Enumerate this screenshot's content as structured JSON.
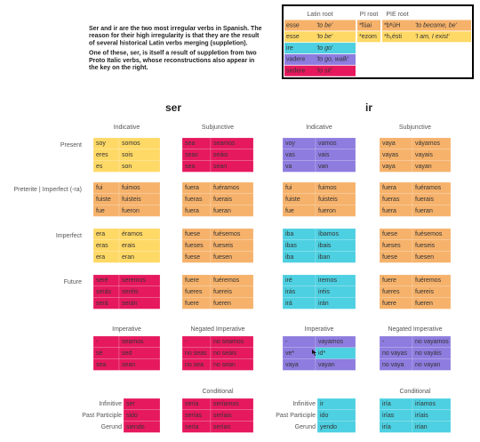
{
  "intro": [
    "Ser and ir are the two most irregular verbs in Spanish. The reason for their high irregularity is that they are the result of several historical Latin verbs merging (suppletion).",
    "One of these, ser, is itself a result of suppletion from two Proto Italic verbs, whose reconstructions also appear in the key on the right."
  ],
  "key": {
    "headers": [
      "Latin root",
      "PI root",
      "PIE root"
    ],
    "rows": [
      {
        "latin": "esse",
        "meaning": "'to be'",
        "pi": "*fúai",
        "pie": "*bʰúH",
        "pie_meaning": "'to become, be'",
        "color": "#f6b26b"
      },
      {
        "latin": "esse",
        "meaning": "'to be'",
        "pi": "*ezom",
        "pie": "*h₁ésti",
        "pie_meaning": "'I am, I exist'",
        "color": "#ffd966"
      },
      {
        "latin": "ire",
        "meaning": "'to go'",
        "color": "#4dd0e1"
      },
      {
        "latin": "vadere",
        "meaning": "'to go, walk'",
        "color": "#8e7cdf"
      },
      {
        "latin": "sedere",
        "meaning": "'to sit'",
        "color": "#e6195e"
      }
    ]
  },
  "row_labels": [
    "Present",
    "Preterite | Imperfect (-ra)",
    "Imperfect",
    "Future"
  ],
  "nonfinite_labels": [
    "Infinitive",
    "Past Participle",
    "Gerund"
  ],
  "verbs": [
    {
      "title": "ser",
      "mood_headers": [
        "Indicative",
        "Subjunctive"
      ],
      "tenses": [
        [
          {
            "color": "#ffd966",
            "cells": [
              [
                "soy",
                "somos"
              ],
              [
                "eres",
                "sois"
              ],
              [
                "es",
                "son"
              ]
            ]
          },
          {
            "color": "#e6195e",
            "cells": [
              [
                "sea",
                "seamos"
              ],
              [
                "seas",
                "seáis"
              ],
              [
                "sea",
                "sean"
              ]
            ]
          }
        ],
        [
          {
            "color": "#f6b26b",
            "cells": [
              [
                "fui",
                "fuimos"
              ],
              [
                "fuiste",
                "fuisteis"
              ],
              [
                "fue",
                "fueron"
              ]
            ]
          },
          {
            "color": "#f6b26b",
            "cells": [
              [
                "fuera",
                "fuéramos"
              ],
              [
                "fueras",
                "fuerais"
              ],
              [
                "fuera",
                "fueran"
              ]
            ]
          }
        ],
        [
          {
            "color": "#ffd966",
            "cells": [
              [
                "era",
                "éramos"
              ],
              [
                "eras",
                "erais"
              ],
              [
                "era",
                "eran"
              ]
            ]
          },
          {
            "color": "#f6b26b",
            "cells": [
              [
                "fuese",
                "fuésemos"
              ],
              [
                "fueses",
                "fueseis"
              ],
              [
                "fuese",
                "fuesen"
              ]
            ]
          }
        ],
        [
          {
            "color": "#e6195e",
            "cells": [
              [
                "seré",
                "seremos"
              ],
              [
                "serás",
                "seréis"
              ],
              [
                "será",
                "serán"
              ]
            ]
          },
          {
            "color": "#f6b26b",
            "cells": [
              [
                "fuere",
                "fuéremos"
              ],
              [
                "fueres",
                "fuereis"
              ],
              [
                "fuere",
                "fueren"
              ]
            ]
          }
        ]
      ],
      "imperative_headers": [
        "Imperative",
        "Negated Imperative"
      ],
      "imperative": [
        {
          "color": "#e6195e",
          "cells": [
            [
              "-",
              "seamos"
            ],
            [
              "sé",
              "sed"
            ],
            [
              "sea",
              "sean"
            ]
          ]
        },
        {
          "color": "#e6195e",
          "cells": [
            [
              "-",
              "no seamos"
            ],
            [
              "no seas",
              "no seáis"
            ],
            [
              "no sea",
              "no sean"
            ]
          ]
        }
      ],
      "nonfinite": {
        "color": "#e6195e",
        "cells": [
          "ser",
          "sido",
          "siendo"
        ]
      },
      "conditional_header": "Conditional",
      "conditional": {
        "color": "#e6195e",
        "cells": [
          [
            "sería",
            "seríamos"
          ],
          [
            "serías",
            "seríais"
          ],
          [
            "sería",
            "serían"
          ]
        ]
      }
    },
    {
      "title": "ir",
      "mood_headers": [
        "Indicative",
        "Subjunctive"
      ],
      "tenses": [
        [
          {
            "color": "#8e7cdf",
            "cells": [
              [
                "voy",
                "vamos"
              ],
              [
                "vas",
                "vais"
              ],
              [
                "va",
                "van"
              ]
            ]
          },
          {
            "color": "#f6b26b",
            "cells": [
              [
                "vaya",
                "váyamos"
              ],
              [
                "vayas",
                "vayais"
              ],
              [
                "vaya",
                "vayan"
              ]
            ]
          }
        ],
        [
          {
            "color": "#f6b26b",
            "cells": [
              [
                "fui",
                "fuimos"
              ],
              [
                "fuiste",
                "fuisteis"
              ],
              [
                "fue",
                "fueron"
              ]
            ]
          },
          {
            "color": "#f6b26b",
            "cells": [
              [
                "fuera",
                "fuéramos"
              ],
              [
                "fueras",
                "fuerais"
              ],
              [
                "fuera",
                "fueran"
              ]
            ]
          }
        ],
        [
          {
            "color": "#4dd0e1",
            "cells": [
              [
                "iba",
                "íbamos"
              ],
              [
                "ibas",
                "ibais"
              ],
              [
                "iba",
                "iban"
              ]
            ]
          },
          {
            "color": "#f6b26b",
            "cells": [
              [
                "fuese",
                "fuésemos"
              ],
              [
                "fueses",
                "fueseis"
              ],
              [
                "fuese",
                "fuesen"
              ]
            ]
          }
        ],
        [
          {
            "color": "#4dd0e1",
            "cells": [
              [
                "iré",
                "iremos"
              ],
              [
                "irás",
                "iréis"
              ],
              [
                "irá",
                "irán"
              ]
            ]
          },
          {
            "color": "#f6b26b",
            "cells": [
              [
                "fuere",
                "fuéremos"
              ],
              [
                "fueres",
                "fuereis"
              ],
              [
                "fuere",
                "fueren"
              ]
            ]
          }
        ]
      ],
      "imperative_headers": [
        "Imperative",
        "Negated Imperative"
      ],
      "imperative": [
        {
          "colors": [
            [
              "#8e7cdf",
              "#8e7cdf"
            ],
            [
              "#8e7cdf",
              "#4dd0e1"
            ],
            [
              "#8e7cdf",
              "#8e7cdf"
            ]
          ],
          "cells": [
            [
              "-",
              "vayamos"
            ],
            [
              "ve*",
              "id*"
            ],
            [
              "vaya",
              "vayan"
            ]
          ]
        },
        {
          "color": "#8e7cdf",
          "cells": [
            [
              "-",
              "no vayamos"
            ],
            [
              "no vayas",
              "no vayáis"
            ],
            [
              "no vaya",
              "no vayan"
            ]
          ]
        }
      ],
      "nonfinite": {
        "color": "#4dd0e1",
        "cells": [
          "ir",
          "ido",
          "yendo"
        ]
      },
      "conditional_header": "Conditional",
      "conditional": {
        "color": "#4dd0e1",
        "cells": [
          [
            "iría",
            "iríamos"
          ],
          [
            "irías",
            "iríais"
          ],
          [
            "iría",
            "irían"
          ]
        ]
      }
    }
  ]
}
